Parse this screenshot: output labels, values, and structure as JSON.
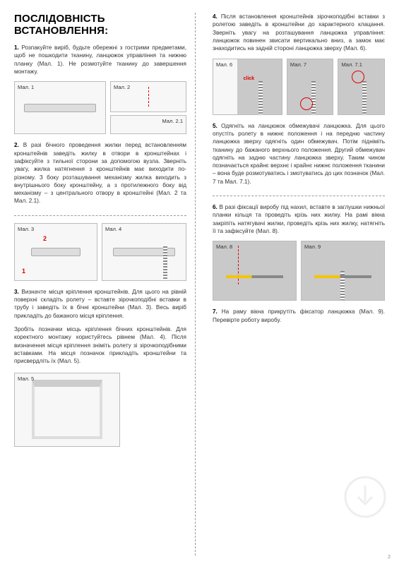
{
  "title": "ПОСЛІДОВНІСТЬ ВСТАНОВЛЕННЯ:",
  "steps": {
    "s1": "**1.** Розпакуйте виріб, будьте обережні з гострими предметами, щоб не пошкодити тканину, ланцюжок управління та нижню планку (Мал. 1). Не розмотуйте тканину до завершення монтажу.",
    "s2": "**2.** В разі бічного проведення жилки перед встановленням кронштейнів заведіть жилку в отвори в кронштейнах і зафіксуйте з тильної сторони за допомогою вузла. Зверніть увагу, жилка натягнення з кронштейнів має виходити по-різному. З боку розташування механізму жилка виходить з внутрішнього боку кронштейну, а з протилежного боку від механізму – з центрального отвору в кронштейні (Мал. 2 та Мал. 2.1).",
    "s3a": "**3.** Визначте місця кріплення кронштейнів. Для цього на рівній поверхні складіть ролету – вставте зірочкоподібні вставки в трубу і заведіть їх в бічні кронштейни (Мал. 3). Весь виріб прикладіть до бажаного місця кріплення.",
    "s3b": "Зробіть позначки місць кріплення бічних кронштейнів. Для коректного монтажу користуйтесь рівнем (Мал. 4). Після визначення місця кріплення зніміть ролету зі зірочкоподібними вставками. На місця позначок прикладіть кронштейни та присвердліть їх (Мал. 5).",
    "s4": "**4.** Після встановлення кронштейнів зірочкоподібні вставки з ролетою заведіть в кронштейни до характерного клацання. Зверніть увагу на розташування ланцюжка управління: ланцюжок повинен звисати вертикально вниз, а замок має знаходитись на задній стороні ланцюжка зверху (Мал. 6).",
    "s5": "**5.** Одягніть на ланцюжок обмежувачі ланцюжка. Для цього опустіть ролету в нижнє положення і на передню частину ланцюжка зверху одягніть один обмежувач. Потім підніміть тканину до бажаного верхнього положення. Другий обмежувач одягніть на задню частину ланцюжка зверху. Таким чином позначається крайнє верхнє і крайнє нижнє положення тканини – вона буде розмотуватись і змотуватись до цих позначок (Мал. 7 та Мал. 7.1).",
    "s6": "**6.** В разі фіксації виробу під нахил, вставте в заглушки нижньої планки кільця та проведіть крізь них жилку. На рамі вікна закріпіть натягувачі жилки, проведіть крізь них жилку, натягніть її та зафіксуйте (Мал. 8).",
    "s7": "**7.** На раму вікна прикрутіть фіксатор ланцюжка (Мал. 9). Перевірте роботу виробу."
  },
  "figs": {
    "f1": "Мал. 1",
    "f2": "Мал. 2",
    "f21": "Мал. 2.1",
    "f3": "Мал. 3",
    "f4": "Мал. 4",
    "f5": "Мал. 5",
    "f6": "Мал. 6",
    "f7": "Мал. 7",
    "f71": "Мал. 7.1",
    "f8": "Мал. 8",
    "f9": "Мал. 9"
  },
  "click": "click",
  "nums": {
    "n1": "1",
    "n2": "2"
  },
  "pagenum": "2",
  "colors": {
    "accent": "#d00",
    "gray": "#c9c9c9",
    "border": "#bbb"
  }
}
